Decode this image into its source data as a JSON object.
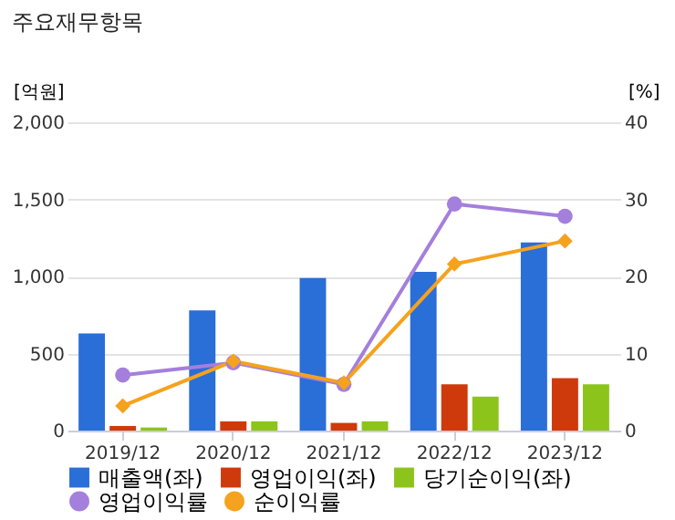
{
  "chart_data": {
    "type": "bar",
    "title": "주요재무항목",
    "ylabel": "[억원]",
    "y2label": "[%]",
    "categories": [
      "2019/12",
      "2020/12",
      "2021/12",
      "2022/12",
      "2023/12"
    ],
    "series": [
      {
        "name": "매출액(좌)",
        "color": "#2a6ed8",
        "values": [
          630,
          780,
          990,
          1030,
          1220
        ]
      },
      {
        "name": "영업이익(좌)",
        "color": "#cf3a0c",
        "values": [
          30,
          60,
          50,
          300,
          340
        ]
      },
      {
        "name": "당기순이익(좌)",
        "color": "#8cc41c",
        "values": [
          20,
          60,
          60,
          220,
          300
        ]
      },
      {
        "name": "영업이익률",
        "type": "line",
        "axis": "y2",
        "marker": "circle",
        "color": "#a47fdc",
        "values": [
          7.2,
          8.8,
          6.0,
          29.4,
          27.8
        ]
      },
      {
        "name": "순이익률",
        "type": "line",
        "axis": "y2",
        "marker": "diamond",
        "color": "#f5a21e",
        "values": [
          3.2,
          9.0,
          6.2,
          21.6,
          24.6
        ]
      }
    ],
    "ylim": [
      0,
      2000
    ],
    "yticks": [
      0,
      500,
      {
        "value": 1000,
        "label": "1,000"
      },
      {
        "value": 1500,
        "label": "1,500"
      },
      {
        "value": 2000,
        "label": "2,000"
      }
    ],
    "y2lim": [
      0,
      40
    ],
    "y2ticks": [
      0,
      10,
      20,
      30,
      40
    ],
    "grid": "y",
    "legend": "bottom"
  }
}
